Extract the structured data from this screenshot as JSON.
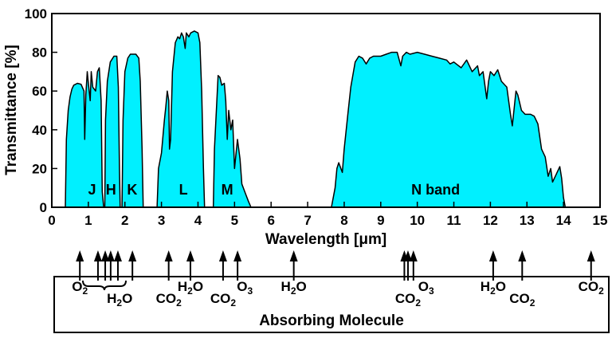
{
  "chart_data": {
    "type": "area",
    "xlabel": "Wavelength [μm]",
    "ylabel": "Transmittance [%]",
    "xlim": [
      0,
      15
    ],
    "ylim": [
      0,
      100
    ],
    "x_ticks": [
      0,
      1,
      2,
      3,
      4,
      5,
      6,
      7,
      8,
      9,
      10,
      11,
      12,
      13,
      14,
      15
    ],
    "y_ticks": [
      0,
      20,
      40,
      60,
      80,
      100
    ],
    "fill_color": "#00f0ff",
    "line_color": "#000000",
    "bands": [
      {
        "label": "J",
        "x": 1.1
      },
      {
        "label": "H",
        "x": 1.62
      },
      {
        "label": "K",
        "x": 2.2
      },
      {
        "label": "L",
        "x": 3.6
      },
      {
        "label": "M",
        "x": 4.8
      },
      {
        "label": "N band",
        "x": 10.5
      }
    ],
    "segments": [
      {
        "points": [
          [
            0.37,
            0
          ],
          [
            0.4,
            35
          ],
          [
            0.45,
            50
          ],
          [
            0.5,
            57
          ],
          [
            0.55,
            61
          ],
          [
            0.6,
            63
          ],
          [
            0.7,
            64
          ],
          [
            0.8,
            63.5
          ],
          [
            0.88,
            60
          ],
          [
            0.9,
            35
          ],
          [
            0.93,
            58
          ],
          [
            0.97,
            70
          ],
          [
            1.0,
            64
          ],
          [
            1.05,
            55
          ],
          [
            1.08,
            70
          ],
          [
            1.12,
            62
          ],
          [
            1.2,
            60
          ],
          [
            1.25,
            70
          ],
          [
            1.3,
            72
          ],
          [
            1.35,
            55
          ],
          [
            1.38,
            8
          ],
          [
            1.42,
            0
          ]
        ]
      },
      {
        "points": [
          [
            1.45,
            0
          ],
          [
            1.47,
            45
          ],
          [
            1.52,
            65
          ],
          [
            1.6,
            75
          ],
          [
            1.7,
            78
          ],
          [
            1.78,
            78
          ],
          [
            1.82,
            62
          ],
          [
            1.85,
            20
          ],
          [
            1.87,
            0
          ]
        ]
      },
      {
        "points": [
          [
            1.92,
            0
          ],
          [
            1.95,
            45
          ],
          [
            2.0,
            70
          ],
          [
            2.08,
            77
          ],
          [
            2.15,
            79
          ],
          [
            2.3,
            79
          ],
          [
            2.38,
            77
          ],
          [
            2.42,
            65
          ],
          [
            2.47,
            30
          ],
          [
            2.5,
            0
          ]
        ]
      },
      {
        "points": [
          [
            2.88,
            0
          ],
          [
            2.92,
            20
          ],
          [
            3.0,
            28
          ],
          [
            3.08,
            45
          ],
          [
            3.12,
            52
          ],
          [
            3.16,
            60
          ],
          [
            3.2,
            55
          ],
          [
            3.22,
            30
          ],
          [
            3.25,
            35
          ],
          [
            3.3,
            70
          ],
          [
            3.38,
            85
          ],
          [
            3.45,
            88
          ],
          [
            3.5,
            87
          ],
          [
            3.55,
            90
          ],
          [
            3.6,
            88
          ],
          [
            3.65,
            82
          ],
          [
            3.68,
            90
          ],
          [
            3.75,
            88
          ],
          [
            3.8,
            90
          ],
          [
            3.9,
            91
          ],
          [
            4.0,
            90
          ],
          [
            4.05,
            85
          ],
          [
            4.1,
            60
          ],
          [
            4.15,
            20
          ],
          [
            4.18,
            0
          ]
        ]
      },
      {
        "points": [
          [
            4.42,
            0
          ],
          [
            4.45,
            30
          ],
          [
            4.55,
            68
          ],
          [
            4.6,
            67
          ],
          [
            4.65,
            63
          ],
          [
            4.72,
            64
          ],
          [
            4.76,
            55
          ],
          [
            4.8,
            35
          ],
          [
            4.84,
            50
          ],
          [
            4.9,
            40
          ],
          [
            4.95,
            45
          ],
          [
            5.0,
            20
          ],
          [
            5.08,
            35
          ],
          [
            5.15,
            25
          ],
          [
            5.2,
            12
          ],
          [
            5.3,
            7
          ],
          [
            5.38,
            3
          ],
          [
            5.45,
            0
          ]
        ]
      },
      {
        "points": [
          [
            7.65,
            0
          ],
          [
            7.75,
            10
          ],
          [
            7.8,
            20
          ],
          [
            7.85,
            23
          ],
          [
            7.95,
            18
          ],
          [
            8.0,
            30
          ],
          [
            8.1,
            48
          ],
          [
            8.18,
            62
          ],
          [
            8.3,
            75
          ],
          [
            8.4,
            78
          ],
          [
            8.5,
            77
          ],
          [
            8.6,
            74
          ],
          [
            8.7,
            77
          ],
          [
            8.8,
            78
          ],
          [
            9.0,
            78
          ],
          [
            9.15,
            79
          ],
          [
            9.3,
            80
          ],
          [
            9.45,
            80
          ],
          [
            9.55,
            73
          ],
          [
            9.6,
            78
          ],
          [
            9.7,
            80
          ],
          [
            9.8,
            79
          ],
          [
            10.0,
            80
          ],
          [
            10.2,
            79
          ],
          [
            10.4,
            78
          ],
          [
            10.6,
            77
          ],
          [
            10.8,
            76
          ],
          [
            10.9,
            74
          ],
          [
            11.0,
            75
          ],
          [
            11.2,
            72
          ],
          [
            11.35,
            76
          ],
          [
            11.5,
            70
          ],
          [
            11.65,
            73
          ],
          [
            11.7,
            68
          ],
          [
            11.8,
            70
          ],
          [
            11.9,
            56
          ],
          [
            11.95,
            65
          ],
          [
            12.0,
            70
          ],
          [
            12.1,
            68
          ],
          [
            12.2,
            71
          ],
          [
            12.3,
            65
          ],
          [
            12.45,
            62
          ],
          [
            12.55,
            48
          ],
          [
            12.6,
            42
          ],
          [
            12.7,
            60
          ],
          [
            12.75,
            58
          ],
          [
            12.85,
            50
          ],
          [
            12.95,
            48
          ],
          [
            13.1,
            48
          ],
          [
            13.2,
            47
          ],
          [
            13.3,
            43
          ],
          [
            13.4,
            30
          ],
          [
            13.5,
            26
          ],
          [
            13.58,
            16
          ],
          [
            13.65,
            20
          ],
          [
            13.7,
            13
          ],
          [
            13.8,
            17
          ],
          [
            13.9,
            21
          ],
          [
            13.95,
            15
          ],
          [
            14.0,
            5
          ],
          [
            14.05,
            0
          ]
        ]
      }
    ]
  },
  "molecules": {
    "title": "Absorbing Molecule",
    "labels": [
      {
        "base": "O",
        "sub": "2",
        "tail": "",
        "x": 0.4,
        "row": 1
      },
      {
        "base": "H",
        "sub": "2",
        "tail": "O",
        "x": 1.5,
        "row": 2
      },
      {
        "base": "CO",
        "sub": "2",
        "tail": "",
        "x": 2.85,
        "row": 2
      },
      {
        "base": "H",
        "sub": "2",
        "tail": "O",
        "x": 3.45,
        "row": 1
      },
      {
        "base": "CO",
        "sub": "2",
        "tail": "",
        "x": 4.35,
        "row": 2
      },
      {
        "base": "O",
        "sub": "3",
        "tail": "",
        "x": 4.95,
        "row": 1
      },
      {
        "base": "H",
        "sub": "2",
        "tail": "O",
        "x": 6.3,
        "row": 1
      },
      {
        "base": "CO",
        "sub": "2",
        "tail": "",
        "x": 9.45,
        "row": 2
      },
      {
        "base": "O",
        "sub": "3",
        "tail": "",
        "x": 9.95,
        "row": 1
      },
      {
        "base": "H",
        "sub": "2",
        "tail": "O",
        "x": 11.8,
        "row": 1
      },
      {
        "base": "CO",
        "sub": "2",
        "tail": "",
        "x": 12.6,
        "row": 2
      },
      {
        "base": "CO",
        "sub": "2",
        "tail": "",
        "x": 14.5,
        "row": 1
      }
    ],
    "arrows": [
      0.4,
      0.9,
      1.1,
      1.25,
      1.45,
      1.85,
      2.85,
      3.45,
      4.35,
      4.75,
      6.3,
      9.35,
      9.45,
      9.6,
      11.8,
      12.6,
      14.5
    ]
  }
}
